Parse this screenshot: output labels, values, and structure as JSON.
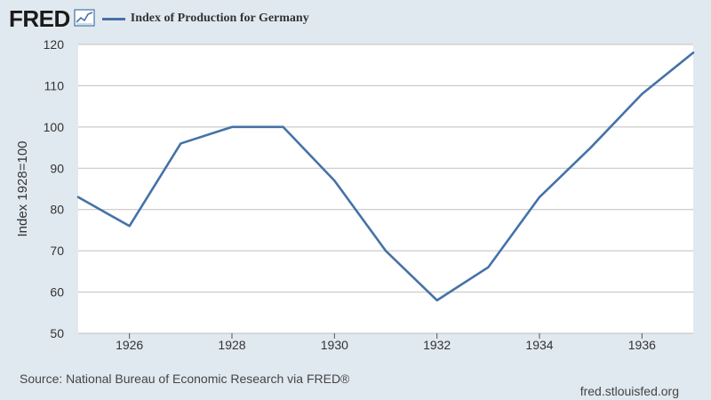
{
  "header": {
    "logo": "FRED",
    "logo_icon": "chart-trend-icon"
  },
  "colors": {
    "series": "#4572a7",
    "plot_bg": "#ffffff",
    "page_bg": "#e1e9f0"
  },
  "chart_data": {
    "type": "line",
    "title": "",
    "xlabel": "",
    "ylabel": "Index 1928=100",
    "xlim": [
      1925,
      1937
    ],
    "ylim": [
      50,
      120
    ],
    "yticks": [
      50,
      60,
      70,
      80,
      90,
      100,
      110,
      120
    ],
    "xticks": [
      1926,
      1928,
      1930,
      1932,
      1934,
      1936
    ],
    "grid": true,
    "series": [
      {
        "name": "Index of Production for Germany",
        "x": [
          1925,
          1926,
          1927,
          1928,
          1929,
          1930,
          1931,
          1932,
          1933,
          1934,
          1935,
          1936,
          1937
        ],
        "values": [
          83,
          76,
          96,
          100,
          100,
          87,
          70,
          58,
          66,
          83,
          95,
          108,
          118
        ]
      }
    ]
  },
  "footer": {
    "source": "Source: National Bureau of Economic Research via FRED®",
    "site": "fred.stlouisfed.org"
  }
}
